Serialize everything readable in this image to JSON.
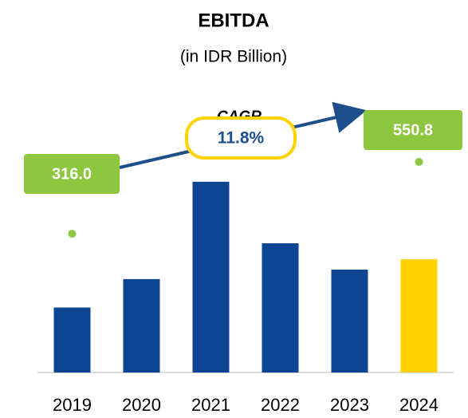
{
  "chart_data": {
    "type": "bar",
    "title": "EBITDA",
    "subtitle": "(in IDR Billion)",
    "categories": [
      "2019",
      "2020",
      "2021",
      "2022",
      "2023",
      "2024"
    ],
    "values": [
      316.0,
      454,
      927,
      628,
      500,
      550.8
    ],
    "value_labels": [
      "316.0",
      null,
      null,
      null,
      null,
      "550.8"
    ],
    "colors": [
      "#0d4592",
      "#0d4592",
      "#0d4592",
      "#0d4592",
      "#0d4592",
      "#ffd200"
    ],
    "ylim": [
      0,
      1000
    ],
    "annotations": {
      "label": "CAGR",
      "value": "11.8%"
    }
  }
}
